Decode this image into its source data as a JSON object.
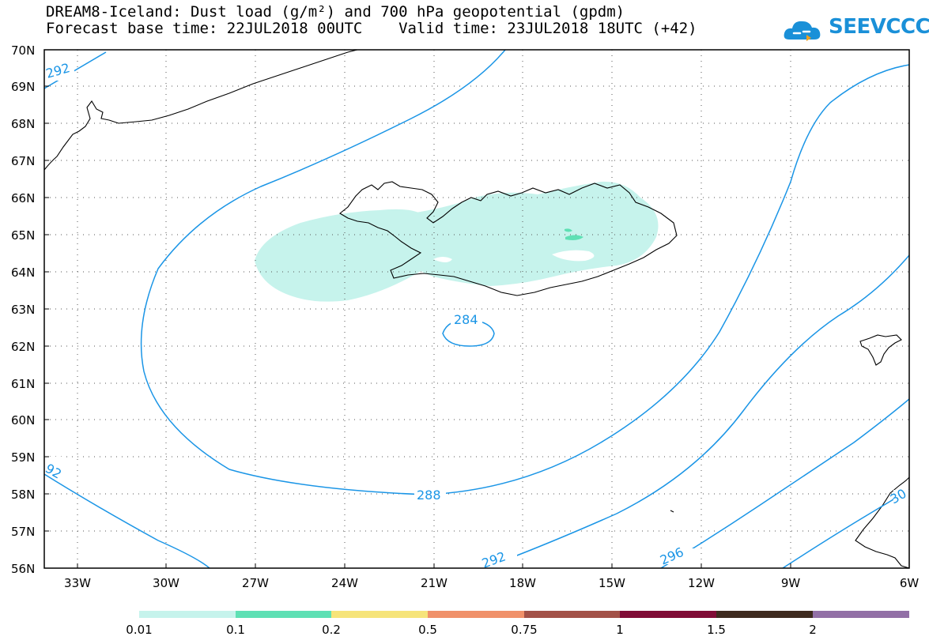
{
  "header": {
    "title": "DREAM8-Iceland: Dust load (g/m²) and 700 hPa geopotential (gpdm)",
    "subtitle": "Forecast base time: 22JUL2018 00UTC    Valid time: 23JUL2018 18UTC (+42)"
  },
  "logo": {
    "text": "SEEVCCC",
    "icon": "cloud-icon"
  },
  "map": {
    "lat_labels": [
      "70N",
      "69N",
      "68N",
      "67N",
      "66N",
      "65N",
      "64N",
      "63N",
      "62N",
      "61N",
      "60N",
      "59N",
      "58N",
      "57N",
      "56N"
    ],
    "lon_labels": [
      "33W",
      "30W",
      "27W",
      "24W",
      "21W",
      "18W",
      "15W",
      "12W",
      "9W",
      "6W"
    ],
    "contour_labels": [
      {
        "text": "292"
      },
      {
        "text": "284"
      },
      {
        "text": "288"
      },
      {
        "text": "92"
      },
      {
        "text": "292"
      },
      {
        "text": "296"
      },
      {
        "text": "30"
      }
    ],
    "colors": {
      "contour": "#1a95e6",
      "coast": "#000000",
      "dust_light": "#c6f3ec",
      "dust_mid": "#5ee0b4"
    }
  },
  "colorbar": {
    "colors": [
      "#c6f3ec",
      "#5ee0b4",
      "#f6e47a",
      "#f0916a",
      "#a35248",
      "#800c36",
      "#3e2a1e",
      "#9270a6"
    ],
    "labels": [
      "0.01",
      "0.1",
      "0.2",
      "0.5",
      "0.75",
      "1",
      "1.5",
      "2"
    ]
  }
}
